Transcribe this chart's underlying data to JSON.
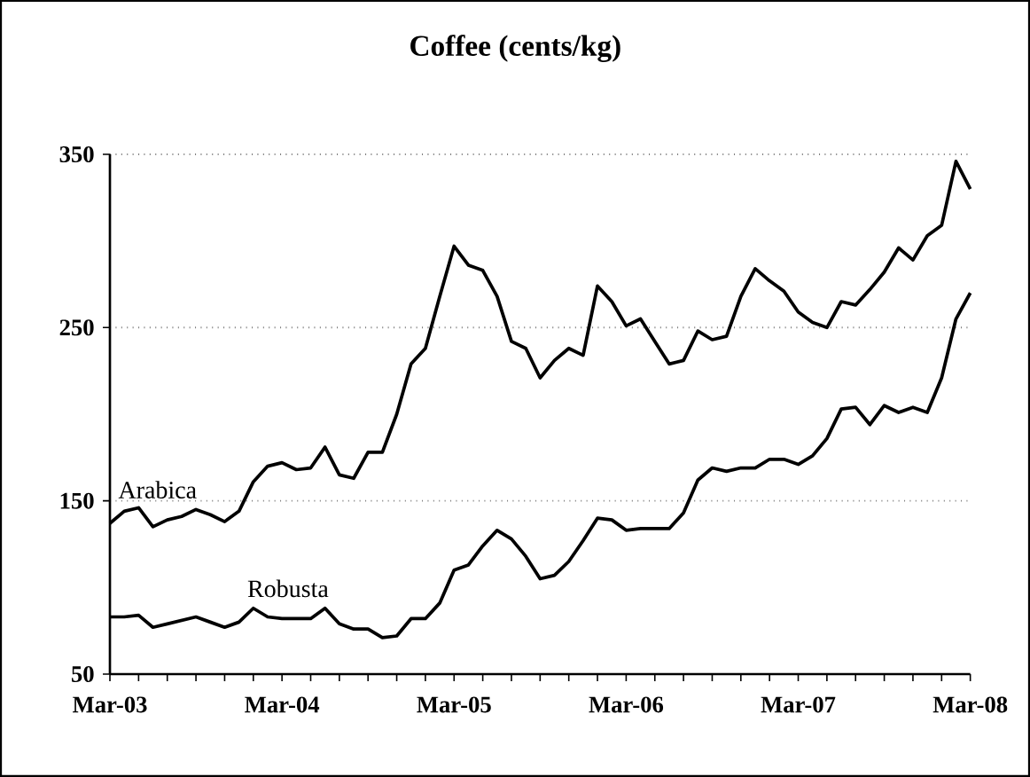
{
  "chart_data": {
    "type": "line",
    "title": "Coffee (cents/kg)",
    "categories": [
      "Mar-03",
      null,
      null,
      null,
      null,
      null,
      null,
      null,
      null,
      null,
      null,
      null,
      "Mar-04",
      null,
      null,
      null,
      null,
      null,
      null,
      null,
      null,
      null,
      null,
      null,
      "Mar-05",
      null,
      null,
      null,
      null,
      null,
      null,
      null,
      null,
      null,
      null,
      null,
      "Mar-06",
      null,
      null,
      null,
      null,
      null,
      null,
      null,
      null,
      null,
      null,
      null,
      "Mar-07",
      null,
      null,
      null,
      null,
      null,
      null,
      null,
      null,
      null,
      null,
      null,
      "Mar-08"
    ],
    "series": [
      {
        "name": "Arabica",
        "color": "#000000",
        "values": [
          137,
          144,
          146,
          135,
          139,
          141,
          145,
          142,
          138,
          144,
          161,
          170,
          172,
          168,
          169,
          181,
          165,
          163,
          178,
          178,
          200,
          229,
          238,
          268,
          297,
          286,
          283,
          268,
          242,
          238,
          221,
          231,
          238,
          234,
          274,
          265,
          251,
          255,
          242,
          229,
          231,
          248,
          243,
          245,
          268,
          284,
          277,
          271,
          259,
          253,
          250,
          265,
          263,
          272,
          282,
          296,
          289,
          303,
          309,
          346,
          330
        ]
      },
      {
        "name": "Robusta",
        "color": "#000000",
        "values": [
          83,
          83,
          84,
          77,
          79,
          81,
          83,
          80,
          77,
          80,
          88,
          83,
          82,
          82,
          82,
          88,
          79,
          76,
          76,
          71,
          72,
          82,
          82,
          91,
          110,
          113,
          124,
          133,
          128,
          118,
          105,
          107,
          115,
          127,
          140,
          139,
          133,
          134,
          134,
          134,
          143,
          162,
          169,
          167,
          169,
          169,
          174,
          174,
          171,
          176,
          186,
          203,
          204,
          194,
          205,
          201,
          204,
          201,
          221,
          255,
          270
        ]
      }
    ],
    "ylim": [
      50,
      350
    ],
    "yticks": [
      50,
      150,
      250,
      350
    ],
    "grid": "y",
    "legend": false,
    "marker": "none",
    "line_style": "solid"
  }
}
